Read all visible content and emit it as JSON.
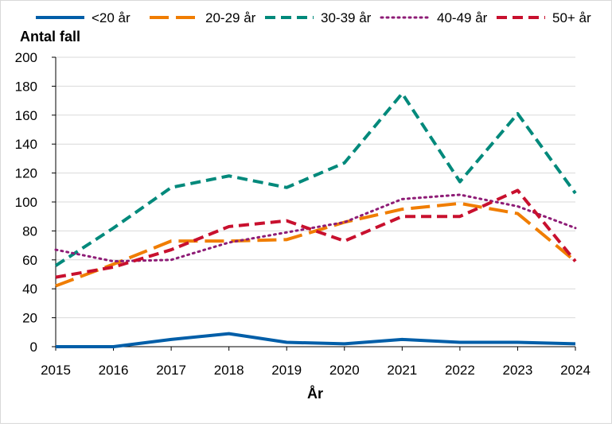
{
  "chart_data": {
    "type": "line",
    "title": "",
    "xlabel": "År",
    "ylabel": "Antal fall",
    "x": [
      2015,
      2016,
      2017,
      2018,
      2019,
      2020,
      2021,
      2022,
      2023,
      2024
    ],
    "xlim": [
      2015,
      2024
    ],
    "ylim": [
      0,
      200
    ],
    "yticks": [
      0,
      20,
      40,
      60,
      80,
      100,
      120,
      140,
      160,
      180,
      200
    ],
    "grid": "horizontal",
    "legend_position": "top",
    "series": [
      {
        "name": "<20 år",
        "color": "#005EA8",
        "dash": "solid",
        "values": [
          0,
          0,
          5,
          9,
          3,
          2,
          5,
          3,
          3,
          2
        ]
      },
      {
        "name": "20-29 år",
        "color": "#F07D00",
        "dash": "longdash",
        "values": [
          42,
          57,
          73,
          73,
          74,
          86,
          95,
          99,
          92,
          59
        ]
      },
      {
        "name": "30-39 år",
        "color": "#00897B",
        "dash": "dash",
        "values": [
          56,
          82,
          110,
          118,
          110,
          127,
          175,
          114,
          161,
          106
        ]
      },
      {
        "name": "40-49 år",
        "color": "#8E1C76",
        "dash": "dot",
        "values": [
          67,
          59,
          60,
          72,
          79,
          86,
          102,
          105,
          97,
          82
        ]
      },
      {
        "name": "50+ år",
        "color": "#C8102E",
        "dash": "dash",
        "values": [
          48,
          55,
          67,
          83,
          87,
          73,
          90,
          90,
          108,
          59
        ]
      }
    ]
  }
}
